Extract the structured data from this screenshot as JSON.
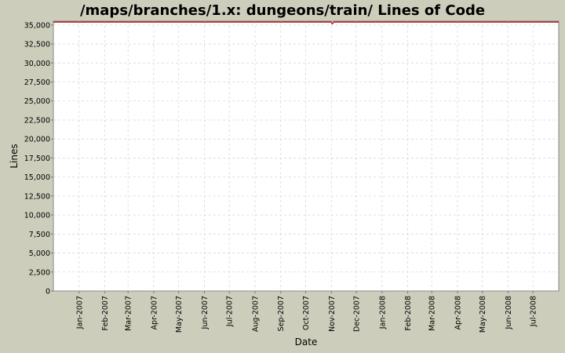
{
  "chart_data": {
    "type": "line",
    "title": "/maps/branches/1.x: dungeons/train/ Lines of Code",
    "xlabel": "Date",
    "ylabel": "Lines",
    "ylim": [
      0,
      35500
    ],
    "yticks": [
      0,
      2500,
      5000,
      7500,
      10000,
      12500,
      15000,
      17500,
      20000,
      22500,
      25000,
      27500,
      30000,
      32500,
      35000
    ],
    "ytick_labels": [
      "0",
      "2,500",
      "5,000",
      "7,500",
      "10,000",
      "12,500",
      "15,000",
      "17,500",
      "20,000",
      "22,500",
      "25,000",
      "27,500",
      "30,000",
      "32,500",
      "35,000"
    ],
    "xlim": [
      "2006-12-01",
      "2008-08-01"
    ],
    "xtick_labels": [
      "Jan-2007",
      "Feb-2007",
      "Mar-2007",
      "Apr-2007",
      "May-2007",
      "Jun-2007",
      "Jul-2007",
      "Aug-2007",
      "Sep-2007",
      "Oct-2007",
      "Nov-2007",
      "Dec-2007",
      "Jan-2008",
      "Feb-2008",
      "Mar-2008",
      "Apr-2008",
      "May-2008",
      "Jun-2008",
      "Jul-2008"
    ],
    "grid": true,
    "series": [
      {
        "color": "#aa0000",
        "points": [
          {
            "x": "2006-12-01",
            "y": 35380
          },
          {
            "x": "2007-11-01",
            "y": 35380
          },
          {
            "x": "2007-11-02",
            "y": 35150
          },
          {
            "x": "2007-11-04",
            "y": 35380
          },
          {
            "x": "2008-08-01",
            "y": 35380
          }
        ]
      }
    ]
  },
  "colors": {
    "background": "#cdcdbb",
    "plot_background": "#ffffff",
    "grid": "#d8d8d8",
    "series": "#aa0000"
  }
}
